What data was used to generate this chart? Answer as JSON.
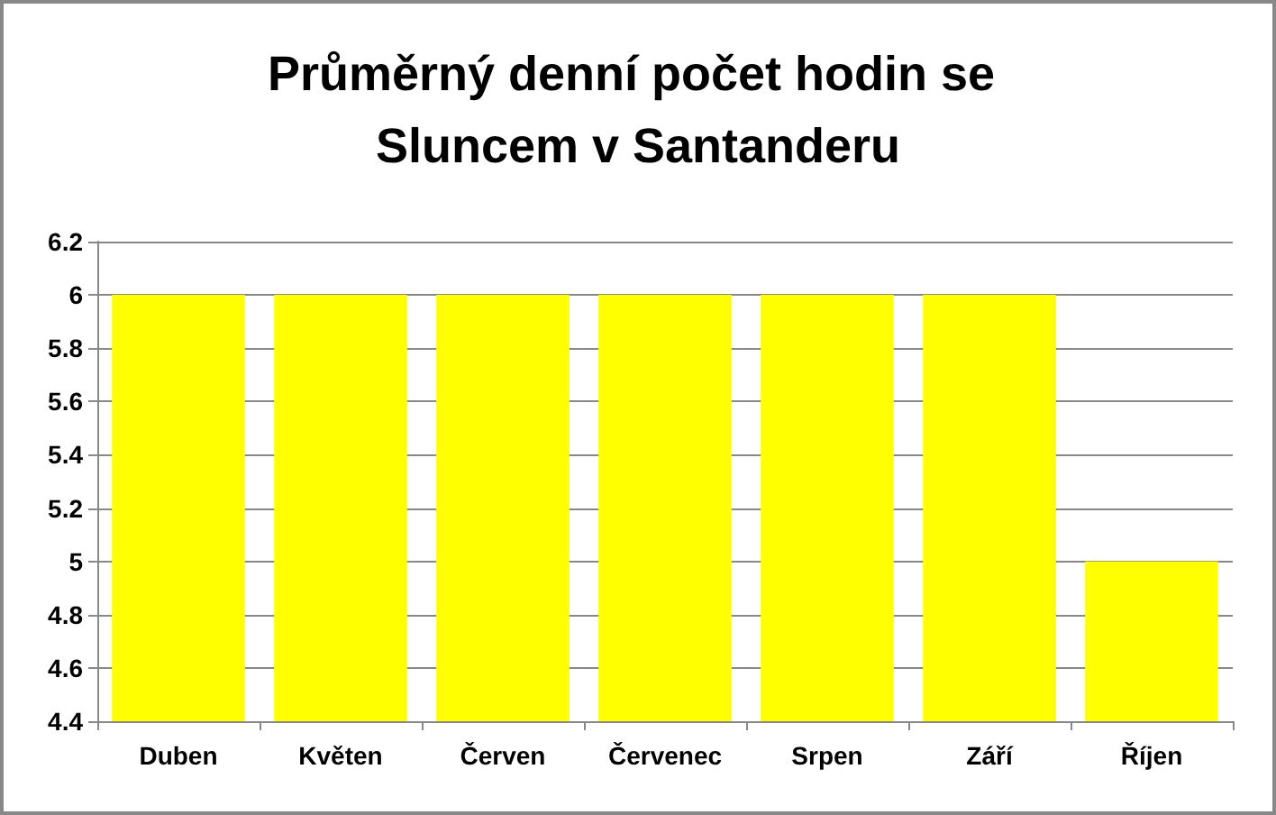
{
  "chart_data": {
    "type": "bar",
    "title": "Průměrný denní počet hodin se Sluncem v Santanderu",
    "categories": [
      "Duben",
      "Květen",
      "Červen",
      "Červenec",
      "Srpen",
      "Září",
      "Říjen"
    ],
    "values": [
      6,
      6,
      6,
      6,
      6,
      6,
      5
    ],
    "color": "#ffff00",
    "ylim": [
      4.4,
      6.2
    ],
    "yticks": [
      4.4,
      4.6,
      4.8,
      5,
      5.2,
      5.4,
      5.6,
      5.8,
      6,
      6.2
    ],
    "grid": "y"
  }
}
